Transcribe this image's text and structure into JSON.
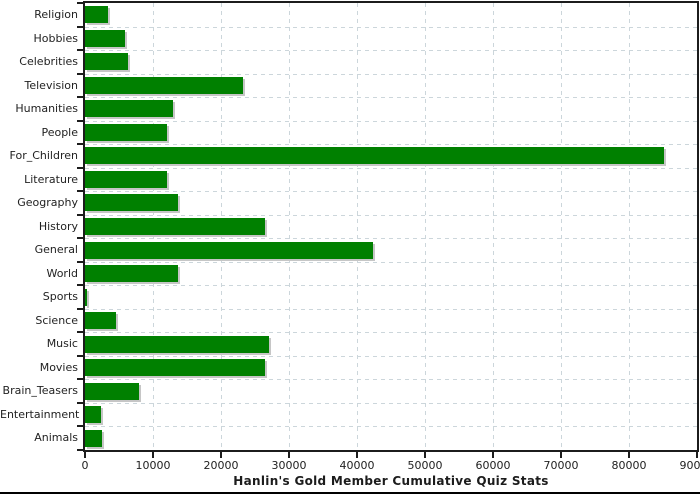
{
  "chart_data": {
    "type": "bar",
    "orientation": "horizontal",
    "title": "Hanlin's Gold Member Cumulative Quiz Stats",
    "categories": [
      "Religion",
      "Hobbies",
      "Celebrities",
      "Television",
      "Humanities",
      "People",
      "For_Children",
      "Literature",
      "Geography",
      "History",
      "General",
      "World",
      "Sports",
      "Science",
      "Music",
      "Movies",
      "Brain_Teasers",
      "Entertainment",
      "Animals"
    ],
    "values": [
      3400,
      5900,
      6300,
      23300,
      12900,
      12000,
      85100,
      12100,
      13700,
      26500,
      42400,
      13700,
      300,
      4500,
      27100,
      26500,
      8000,
      2300,
      2500
    ],
    "xlim": [
      0,
      90000
    ],
    "x_tick_labels": [
      "0",
      "10000",
      "20000",
      "30000",
      "40000",
      "50000",
      "60000",
      "70000",
      "80000",
      "90000"
    ],
    "grid": "dashed, vertical at every x tick and horizontal at every category boundary",
    "legend": "none",
    "bar_color": "#008000",
    "bar_shadow_color": "#c6c6c6",
    "grid_color": "#ccd6db",
    "axis_color": "#1c1c1c",
    "text_color": "#222222"
  }
}
